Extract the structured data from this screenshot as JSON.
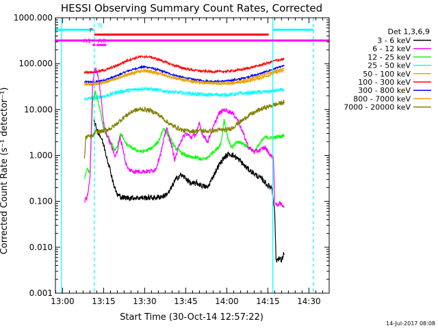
{
  "chart_data": {
    "type": "line",
    "title": "HESSI Observing Summary Count Rates, Corrected",
    "ylabel": "Corrected Count Rate (s⁻¹ detector⁻¹)",
    "xlabel": "Start Time (30-Oct-14 12:57:22)",
    "x_ticks": [
      "13:00",
      "13:15",
      "13:30",
      "13:45",
      "14:00",
      "14:15",
      "14:30"
    ],
    "x_tick_minutes": [
      0,
      15,
      30,
      45,
      60,
      75,
      90
    ],
    "xlim_minutes": [
      -2.6,
      97.4
    ],
    "y_scale": "log",
    "ylim": [
      0.001,
      1000
    ],
    "y_ticks": [
      "0.001",
      "0.010",
      "0.100",
      "1.000",
      "10.000",
      "100.000",
      "1000.000"
    ],
    "y_tick_values": [
      0.001,
      0.01,
      0.1,
      1,
      10,
      100,
      1000
    ],
    "legend_title": "Det 1,3,6,9",
    "legend_position": "right",
    "date_stamp": "14-Jul-2017 08:08",
    "series": [
      {
        "name": "3 - 6 keV",
        "color": "#000000",
        "noise": 0.06,
        "points": [
          [
            11.5,
            5.5
          ],
          [
            12,
            4.5
          ],
          [
            13,
            3.2
          ],
          [
            14,
            2.5
          ],
          [
            15,
            1.7
          ],
          [
            16,
            1.0
          ],
          [
            17,
            0.6
          ],
          [
            18,
            0.35
          ],
          [
            19,
            0.2
          ],
          [
            20,
            0.14
          ],
          [
            22,
            0.12
          ],
          [
            25,
            0.12
          ],
          [
            28,
            0.12
          ],
          [
            31,
            0.12
          ],
          [
            34,
            0.12
          ],
          [
            37,
            0.13
          ],
          [
            39,
            0.16
          ],
          [
            41,
            0.28
          ],
          [
            43,
            0.38
          ],
          [
            45,
            0.32
          ],
          [
            47,
            0.24
          ],
          [
            49,
            0.25
          ],
          [
            51,
            0.22
          ],
          [
            53,
            0.2
          ],
          [
            55,
            0.35
          ],
          [
            57,
            0.6
          ],
          [
            59,
            0.9
          ],
          [
            61,
            1.1
          ],
          [
            63,
            0.95
          ],
          [
            65,
            0.75
          ],
          [
            67,
            0.55
          ],
          [
            70,
            0.4
          ],
          [
            73,
            0.3
          ],
          [
            75,
            0.22
          ],
          [
            76.5,
            0.2
          ],
          [
            77.5,
            0.06
          ],
          [
            78,
            0.005
          ],
          [
            79,
            0.006
          ],
          [
            80,
            0.005
          ],
          [
            81,
            0.008
          ]
        ]
      },
      {
        "name": "6 - 12 keV",
        "color": "#ff00ff",
        "noise": 0.05,
        "points": [
          [
            8,
            0.1
          ],
          [
            9,
            0.12
          ],
          [
            10,
            0.3
          ],
          [
            11,
            40
          ],
          [
            12,
            80
          ],
          [
            13,
            55
          ],
          [
            14,
            20
          ],
          [
            15,
            5
          ],
          [
            16,
            3
          ],
          [
            17,
            2.2
          ],
          [
            18,
            1.5
          ],
          [
            19,
            1.0
          ],
          [
            20,
            1.2
          ],
          [
            21,
            2.5
          ],
          [
            22,
            1.5
          ],
          [
            23,
            0.7
          ],
          [
            24,
            0.5
          ],
          [
            26,
            0.45
          ],
          [
            28,
            0.45
          ],
          [
            30,
            0.45
          ],
          [
            32,
            0.45
          ],
          [
            34,
            0.5
          ],
          [
            36,
            1.2
          ],
          [
            38,
            4.0
          ],
          [
            40,
            1.5
          ],
          [
            41,
            0.8
          ],
          [
            43,
            2.0
          ],
          [
            45,
            3.0
          ],
          [
            47,
            2.5
          ],
          [
            49,
            3.0
          ],
          [
            50,
            5.0
          ],
          [
            51,
            3.0
          ],
          [
            53,
            2.0
          ],
          [
            55,
            4.0
          ],
          [
            57,
            8.0
          ],
          [
            59,
            10.0
          ],
          [
            61,
            9.0
          ],
          [
            62,
            8.5
          ],
          [
            64,
            6.0
          ],
          [
            66,
            3.0
          ],
          [
            68,
            1.5
          ],
          [
            70,
            1.2
          ],
          [
            72,
            1.3
          ],
          [
            74,
            1.5
          ],
          [
            76,
            1.0
          ],
          [
            77,
            0.9
          ],
          [
            77.5,
            0.1
          ],
          [
            78,
            0.08
          ],
          [
            79,
            0.09
          ],
          [
            81,
            0.08
          ]
        ]
      },
      {
        "name": "12 - 25 keV",
        "color": "#00ff00",
        "noise": 0.04,
        "points": [
          [
            8,
            0.3
          ],
          [
            9,
            0.5
          ],
          [
            10,
            0.4
          ],
          [
            11,
            15
          ],
          [
            12,
            25
          ],
          [
            13,
            15
          ],
          [
            14,
            8
          ],
          [
            15,
            4
          ],
          [
            16,
            2.8
          ],
          [
            17,
            2.2
          ],
          [
            18,
            1.8
          ],
          [
            19,
            1.3
          ],
          [
            20,
            1.5
          ],
          [
            21,
            3.0
          ],
          [
            22,
            2.5
          ],
          [
            23,
            1.8
          ],
          [
            25,
            1.5
          ],
          [
            27,
            1.3
          ],
          [
            29,
            1.2
          ],
          [
            31,
            1.3
          ],
          [
            33,
            1.5
          ],
          [
            35,
            2.0
          ],
          [
            37,
            4.0
          ],
          [
            39,
            2.5
          ],
          [
            41,
            1.5
          ],
          [
            43,
            1.2
          ],
          [
            45,
            1.0
          ],
          [
            47,
            0.9
          ],
          [
            49,
            0.9
          ],
          [
            51,
            0.8
          ],
          [
            53,
            0.9
          ],
          [
            55,
            1.2
          ],
          [
            57,
            1.5
          ],
          [
            58,
            2.0
          ],
          [
            59,
            6.0
          ],
          [
            60,
            3.0
          ],
          [
            61,
            1.8
          ],
          [
            62,
            1.5
          ],
          [
            64,
            2.0
          ],
          [
            66,
            1.8
          ],
          [
            68,
            1.5
          ],
          [
            70,
            1.2
          ],
          [
            72,
            1.8
          ],
          [
            74,
            2.5
          ],
          [
            76,
            2.4
          ],
          [
            78,
            2.5
          ],
          [
            80,
            2.6
          ],
          [
            81,
            2.8
          ]
        ]
      },
      {
        "name": "25 - 50 keV",
        "color": "#00ffff",
        "noise": 0.04,
        "points": [
          [
            8,
            17
          ],
          [
            12,
            18
          ],
          [
            16,
            20
          ],
          [
            20,
            24
          ],
          [
            24,
            26
          ],
          [
            28,
            28
          ],
          [
            30,
            29
          ],
          [
            32,
            28
          ],
          [
            36,
            26
          ],
          [
            40,
            24
          ],
          [
            44,
            23
          ],
          [
            48,
            22
          ],
          [
            52,
            21
          ],
          [
            56,
            21
          ],
          [
            60,
            21
          ],
          [
            64,
            22
          ],
          [
            68,
            23
          ],
          [
            72,
            24
          ],
          [
            76,
            25
          ],
          [
            78,
            26
          ],
          [
            81,
            27
          ]
        ]
      },
      {
        "name": "50 - 100 keV",
        "color": "#e6a800",
        "noise": 0.025,
        "points": [
          [
            8,
            36
          ],
          [
            12,
            36
          ],
          [
            16,
            40
          ],
          [
            20,
            48
          ],
          [
            24,
            58
          ],
          [
            28,
            66
          ],
          [
            30,
            68
          ],
          [
            32,
            66
          ],
          [
            36,
            58
          ],
          [
            40,
            50
          ],
          [
            44,
            45
          ],
          [
            48,
            41
          ],
          [
            52,
            38
          ],
          [
            56,
            37
          ],
          [
            60,
            37
          ],
          [
            64,
            38
          ],
          [
            68,
            42
          ],
          [
            72,
            48
          ],
          [
            76,
            58
          ],
          [
            78,
            64
          ],
          [
            81,
            70
          ]
        ]
      },
      {
        "name": "100 - 300 keV",
        "color": "#ff0000",
        "noise": 0.025,
        "points": [
          [
            8,
            65
          ],
          [
            12,
            66
          ],
          [
            16,
            74
          ],
          [
            20,
            92
          ],
          [
            24,
            120
          ],
          [
            28,
            140
          ],
          [
            30,
            142
          ],
          [
            32,
            140
          ],
          [
            36,
            118
          ],
          [
            40,
            95
          ],
          [
            44,
            80
          ],
          [
            48,
            72
          ],
          [
            52,
            68
          ],
          [
            56,
            67
          ],
          [
            60,
            68
          ],
          [
            64,
            72
          ],
          [
            68,
            80
          ],
          [
            72,
            92
          ],
          [
            76,
            108
          ],
          [
            78,
            118
          ],
          [
            81,
            125
          ]
        ]
      },
      {
        "name": "300 - 800 keV",
        "color": "#0000ff",
        "noise": 0.02,
        "points": [
          [
            8,
            40
          ],
          [
            12,
            40
          ],
          [
            16,
            45
          ],
          [
            20,
            55
          ],
          [
            24,
            70
          ],
          [
            28,
            82
          ],
          [
            30,
            85
          ],
          [
            32,
            82
          ],
          [
            36,
            70
          ],
          [
            40,
            58
          ],
          [
            44,
            50
          ],
          [
            48,
            45
          ],
          [
            52,
            42
          ],
          [
            56,
            41
          ],
          [
            60,
            42
          ],
          [
            64,
            45
          ],
          [
            68,
            52
          ],
          [
            72,
            60
          ],
          [
            76,
            72
          ],
          [
            78,
            80
          ],
          [
            81,
            90
          ]
        ]
      },
      {
        "name": "800 - 7000 keV",
        "color": "#ff9900",
        "noise": 0.02,
        "points": [
          [
            8,
            35
          ],
          [
            12,
            36
          ],
          [
            16,
            40
          ],
          [
            20,
            48
          ],
          [
            24,
            60
          ],
          [
            28,
            70
          ],
          [
            30,
            72
          ],
          [
            32,
            70
          ],
          [
            36,
            60
          ],
          [
            40,
            50
          ],
          [
            44,
            44
          ],
          [
            48,
            40
          ],
          [
            52,
            38
          ],
          [
            56,
            37
          ],
          [
            60,
            37
          ],
          [
            64,
            40
          ],
          [
            68,
            46
          ],
          [
            72,
            54
          ],
          [
            76,
            64
          ],
          [
            78,
            70
          ],
          [
            81,
            78
          ]
        ]
      },
      {
        "name": "7000 - 20000 keV",
        "color": "#808000",
        "noise": 0.05,
        "points": [
          [
            8,
            0.8
          ],
          [
            8.5,
            2.5
          ],
          [
            10,
            2.6
          ],
          [
            11,
            2.6
          ],
          [
            12,
            3.2
          ],
          [
            13,
            3.3
          ],
          [
            14,
            3.3
          ],
          [
            16,
            3.6
          ],
          [
            18,
            4.0
          ],
          [
            20,
            5.0
          ],
          [
            22,
            6.5
          ],
          [
            24,
            8.0
          ],
          [
            26,
            9.5
          ],
          [
            28,
            10.0
          ],
          [
            30,
            10.0
          ],
          [
            32,
            9.5
          ],
          [
            34,
            8.5
          ],
          [
            36,
            7.0
          ],
          [
            38,
            5.5
          ],
          [
            40,
            4.5
          ],
          [
            42,
            4.0
          ],
          [
            44,
            3.5
          ],
          [
            46,
            3.4
          ],
          [
            48,
            3.4
          ],
          [
            50,
            3.5
          ],
          [
            52,
            3.4
          ],
          [
            54,
            3.4
          ],
          [
            56,
            3.5
          ],
          [
            58,
            3.6
          ],
          [
            60,
            3.6
          ],
          [
            62,
            4.0
          ],
          [
            64,
            5.0
          ],
          [
            66,
            6.0
          ],
          [
            68,
            7.5
          ],
          [
            70,
            8.5
          ],
          [
            72,
            10.0
          ],
          [
            74,
            11.0
          ],
          [
            76,
            12.0
          ],
          [
            78,
            13.0
          ],
          [
            81,
            14.5
          ]
        ]
      }
    ],
    "bars": [
      {
        "label": "N",
        "color": "#00ffff",
        "y": 550,
        "segments": [
          [
            -2.6,
            11.6
          ],
          [
            76.8,
            91.6
          ]
        ]
      },
      {
        "label": "F",
        "color": "#ff0000",
        "y": 430,
        "segments": [
          [
            11.6,
            75.3
          ]
        ]
      },
      {
        "label": "",
        "color": "#ff00ff",
        "y": 320,
        "segments": [
          [
            -2.6,
            97.4
          ]
        ]
      },
      {
        "label": "A1",
        "color": "#ff00ff",
        "y": 255,
        "segments": [
          [
            11.0,
            12.0
          ]
        ]
      },
      {
        "label": "A0",
        "color": "#ff00ff",
        "y": 255,
        "segments": [
          [
            12.4,
            16.0
          ]
        ]
      }
    ],
    "vlines": [
      {
        "x": -0.4,
        "color": "#00ffff",
        "style": "solid"
      },
      {
        "x": 11.6,
        "color": "#00ffff",
        "style": "dashed"
      },
      {
        "x": 76.8,
        "color": "#00ffff",
        "style": "solid"
      },
      {
        "x": 91.6,
        "color": "#00ffff",
        "style": "dashed"
      }
    ]
  }
}
